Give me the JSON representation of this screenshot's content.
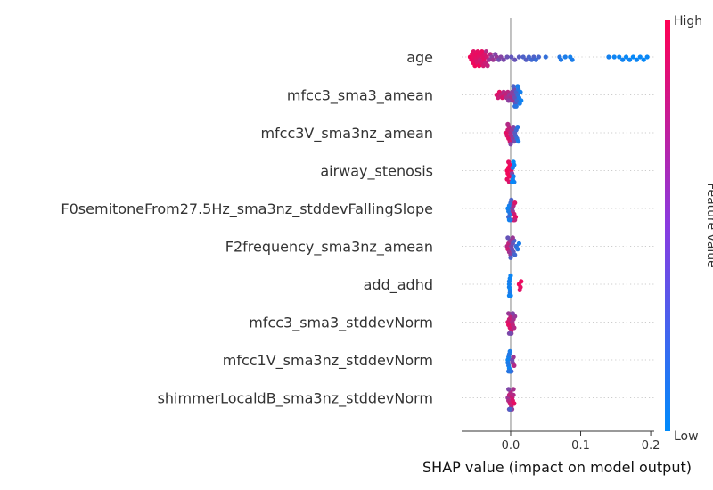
{
  "chart_data": {
    "type": "scatter",
    "subtype": "shap-beeswarm",
    "xlabel": "SHAP value (impact on model output)",
    "xlim": [
      -0.07,
      0.205
    ],
    "xticks": [
      0.0,
      0.1,
      0.2
    ],
    "xtick_labels": [
      "0.0",
      "0.1",
      "0.2"
    ],
    "colorbar": {
      "label": "Feature value",
      "high": "High",
      "low": "Low",
      "low_color": "#008bfb",
      "high_color": "#ff0052"
    },
    "features": [
      {
        "name": "age",
        "points": [
          [
            -0.058,
            0.95
          ],
          [
            -0.056,
            0.92
          ],
          [
            -0.055,
            0.9
          ],
          [
            -0.054,
            0.93
          ],
          [
            -0.053,
            0.88
          ],
          [
            -0.052,
            0.9
          ],
          [
            -0.051,
            0.95
          ],
          [
            -0.05,
            0.87
          ],
          [
            -0.049,
            0.92
          ],
          [
            -0.048,
            0.85
          ],
          [
            -0.047,
            0.9
          ],
          [
            -0.046,
            0.88
          ],
          [
            -0.045,
            0.95
          ],
          [
            -0.044,
            0.8
          ],
          [
            -0.043,
            0.9
          ],
          [
            -0.042,
            0.85
          ],
          [
            -0.041,
            0.92
          ],
          [
            -0.04,
            0.88
          ],
          [
            -0.039,
            0.82
          ],
          [
            -0.038,
            0.9
          ],
          [
            -0.037,
            0.85
          ],
          [
            -0.036,
            0.78
          ],
          [
            -0.035,
            0.7
          ],
          [
            -0.034,
            0.82
          ],
          [
            -0.033,
            0.75
          ],
          [
            -0.031,
            0.6
          ],
          [
            -0.029,
            0.7
          ],
          [
            -0.027,
            0.55
          ],
          [
            -0.025,
            0.62
          ],
          [
            -0.022,
            0.5
          ],
          [
            -0.02,
            0.58
          ],
          [
            -0.017,
            0.45
          ],
          [
            -0.014,
            0.52
          ],
          [
            -0.01,
            0.48
          ],
          [
            -0.005,
            0.42
          ],
          [
            0.001,
            0.38
          ],
          [
            0.006,
            0.4
          ],
          [
            0.012,
            0.35
          ],
          [
            0.018,
            0.3
          ],
          [
            0.022,
            0.33
          ],
          [
            0.026,
            0.28
          ],
          [
            0.03,
            0.25
          ],
          [
            0.033,
            0.3
          ],
          [
            0.036,
            0.22
          ],
          [
            0.04,
            0.27
          ],
          [
            0.05,
            0.2
          ],
          [
            0.07,
            0.15
          ],
          [
            0.072,
            0.12
          ],
          [
            0.078,
            0.1
          ],
          [
            0.085,
            0.08
          ],
          [
            0.088,
            0.1
          ],
          [
            0.14,
            0.08
          ],
          [
            0.148,
            0.05
          ],
          [
            0.155,
            0.04
          ],
          [
            0.16,
            0.06
          ],
          [
            0.165,
            0.03
          ],
          [
            0.17,
            0.05
          ],
          [
            0.175,
            0.02
          ],
          [
            0.18,
            0.04
          ],
          [
            0.185,
            0.03
          ],
          [
            0.19,
            0.02
          ],
          [
            0.195,
            0.03
          ]
        ]
      },
      {
        "name": "mfcc3_sma3_amean",
        "points": [
          [
            -0.02,
            0.85
          ],
          [
            -0.018,
            0.8
          ],
          [
            -0.016,
            0.9
          ],
          [
            -0.014,
            0.75
          ],
          [
            -0.012,
            0.85
          ],
          [
            -0.01,
            0.7
          ],
          [
            -0.008,
            0.78
          ],
          [
            -0.006,
            0.65
          ],
          [
            -0.004,
            0.72
          ],
          [
            -0.002,
            0.6
          ],
          [
            0.0,
            0.68
          ],
          [
            0.002,
            0.55
          ],
          [
            0.003,
            0.62
          ],
          [
            0.004,
            0.5
          ],
          [
            0.005,
            0.45
          ],
          [
            0.006,
            0.4
          ],
          [
            0.007,
            0.35
          ],
          [
            0.008,
            0.3
          ],
          [
            0.009,
            0.25
          ],
          [
            0.01,
            0.2
          ],
          [
            0.011,
            0.15
          ],
          [
            0.012,
            0.12
          ],
          [
            0.013,
            0.1
          ],
          [
            0.014,
            0.08
          ],
          [
            0.015,
            0.05
          ],
          [
            0.004,
            0.3
          ],
          [
            0.006,
            0.2
          ],
          [
            0.008,
            0.15
          ],
          [
            0.01,
            0.1
          ],
          [
            -0.003,
            0.55
          ]
        ]
      },
      {
        "name": "mfcc3V_sma3nz_amean",
        "points": [
          [
            -0.006,
            0.9
          ],
          [
            -0.005,
            0.85
          ],
          [
            -0.004,
            0.8
          ],
          [
            -0.003,
            0.88
          ],
          [
            -0.002,
            0.75
          ],
          [
            -0.001,
            0.82
          ],
          [
            0.0,
            0.7
          ],
          [
            0.001,
            0.65
          ],
          [
            0.002,
            0.6
          ],
          [
            0.003,
            0.55
          ],
          [
            0.004,
            0.5
          ],
          [
            0.005,
            0.45
          ],
          [
            0.006,
            0.35
          ],
          [
            0.007,
            0.3
          ],
          [
            0.008,
            0.25
          ],
          [
            0.009,
            0.2
          ],
          [
            0.01,
            0.15
          ],
          [
            0.011,
            0.1
          ],
          [
            -0.004,
            0.7
          ],
          [
            0.0,
            0.5
          ]
        ]
      },
      {
        "name": "airway_stenosis",
        "points": [
          [
            -0.005,
            0.95
          ],
          [
            -0.004,
            0.95
          ],
          [
            -0.003,
            0.95
          ],
          [
            -0.002,
            0.95
          ],
          [
            -0.001,
            0.95
          ],
          [
            -0.005,
            0.9
          ],
          [
            -0.003,
            0.9
          ],
          [
            -0.001,
            0.9
          ],
          [
            0.001,
            0.9
          ],
          [
            -0.002,
            0.85
          ],
          [
            0.0,
            0.85
          ],
          [
            0.002,
            0.5
          ],
          [
            0.003,
            0.1
          ],
          [
            0.004,
            0.08
          ],
          [
            0.005,
            0.05
          ],
          [
            0.003,
            0.05
          ],
          [
            0.004,
            0.02
          ],
          [
            0.002,
            0.06
          ],
          [
            0.005,
            0.1
          ],
          [
            0.003,
            0.02
          ]
        ]
      },
      {
        "name": "F0semitoneFrom27.5Hz_sma3nz_stddevFallingSlope",
        "points": [
          [
            -0.004,
            0.05
          ],
          [
            -0.003,
            0.1
          ],
          [
            -0.002,
            0.08
          ],
          [
            -0.001,
            0.15
          ],
          [
            0.0,
            0.2
          ],
          [
            -0.003,
            0.25
          ],
          [
            0.001,
            0.3
          ],
          [
            0.002,
            0.45
          ],
          [
            0.003,
            0.6
          ],
          [
            0.004,
            0.7
          ],
          [
            0.005,
            0.8
          ],
          [
            0.006,
            0.85
          ],
          [
            0.007,
            0.9
          ],
          [
            0.005,
            0.95
          ],
          [
            0.004,
            0.88
          ],
          [
            0.006,
            0.75
          ],
          [
            -0.002,
            0.05
          ],
          [
            0.0,
            0.12
          ]
        ]
      },
      {
        "name": "F2frequency_sma3nz_amean",
        "points": [
          [
            -0.005,
            0.7
          ],
          [
            -0.004,
            0.8
          ],
          [
            -0.003,
            0.75
          ],
          [
            -0.002,
            0.65
          ],
          [
            -0.001,
            0.6
          ],
          [
            0.0,
            0.55
          ],
          [
            0.001,
            0.5
          ],
          [
            0.002,
            0.45
          ],
          [
            0.003,
            0.4
          ],
          [
            0.004,
            0.35
          ],
          [
            0.005,
            0.3
          ],
          [
            0.006,
            0.25
          ],
          [
            0.008,
            0.2
          ],
          [
            0.01,
            0.15
          ],
          [
            0.012,
            0.1
          ],
          [
            -0.004,
            0.4
          ],
          [
            0.0,
            0.3
          ],
          [
            0.003,
            0.6
          ]
        ]
      },
      {
        "name": "add_adhd",
        "points": [
          [
            -0.002,
            0.05
          ],
          [
            -0.002,
            0.08
          ],
          [
            -0.002,
            0.1
          ],
          [
            -0.001,
            0.03
          ],
          [
            -0.001,
            0.06
          ],
          [
            -0.001,
            0.12
          ],
          [
            0.0,
            0.04
          ],
          [
            0.0,
            0.07
          ],
          [
            0.0,
            0.09
          ],
          [
            -0.002,
            0.02
          ],
          [
            -0.001,
            0.1
          ],
          [
            0.0,
            0.05
          ],
          [
            0.012,
            0.95
          ],
          [
            0.014,
            0.9
          ],
          [
            0.015,
            0.92
          ],
          [
            0.013,
            0.88
          ]
        ]
      },
      {
        "name": "mfcc3_sma3_stddevNorm",
        "points": [
          [
            -0.004,
            0.85
          ],
          [
            -0.003,
            0.9
          ],
          [
            -0.002,
            0.8
          ],
          [
            -0.001,
            0.85
          ],
          [
            0.0,
            0.75
          ],
          [
            0.001,
            0.8
          ],
          [
            0.002,
            0.7
          ],
          [
            0.003,
            0.75
          ],
          [
            0.004,
            0.65
          ],
          [
            0.005,
            0.7
          ],
          [
            0.006,
            0.6
          ],
          [
            -0.003,
            0.6
          ],
          [
            0.001,
            0.55
          ],
          [
            0.003,
            0.5
          ],
          [
            -0.002,
            0.5
          ],
          [
            0.0,
            0.45
          ]
        ]
      },
      {
        "name": "mfcc1V_sma3nz_stddevNorm",
        "points": [
          [
            -0.004,
            0.05
          ],
          [
            -0.004,
            0.1
          ],
          [
            -0.003,
            0.08
          ],
          [
            -0.003,
            0.12
          ],
          [
            -0.002,
            0.15
          ],
          [
            -0.002,
            0.05
          ],
          [
            -0.001,
            0.1
          ],
          [
            -0.001,
            0.2
          ],
          [
            0.0,
            0.25
          ],
          [
            0.001,
            0.3
          ],
          [
            0.002,
            0.4
          ],
          [
            0.003,
            0.5
          ],
          [
            0.004,
            0.6
          ],
          [
            0.005,
            0.7
          ],
          [
            -0.003,
            0.15
          ],
          [
            0.0,
            0.15
          ]
        ]
      },
      {
        "name": "shimmerLocaldB_sma3nz_stddevNorm",
        "points": [
          [
            -0.004,
            0.6
          ],
          [
            -0.003,
            0.7
          ],
          [
            -0.002,
            0.75
          ],
          [
            -0.001,
            0.8
          ],
          [
            0.0,
            0.7
          ],
          [
            0.001,
            0.75
          ],
          [
            0.002,
            0.8
          ],
          [
            0.003,
            0.85
          ],
          [
            0.004,
            0.7
          ],
          [
            0.005,
            0.9
          ],
          [
            -0.003,
            0.5
          ],
          [
            0.001,
            0.6
          ],
          [
            -0.002,
            0.4
          ],
          [
            0.002,
            0.55
          ],
          [
            0.004,
            0.65
          ],
          [
            -0.001,
            0.3
          ]
        ]
      }
    ]
  }
}
